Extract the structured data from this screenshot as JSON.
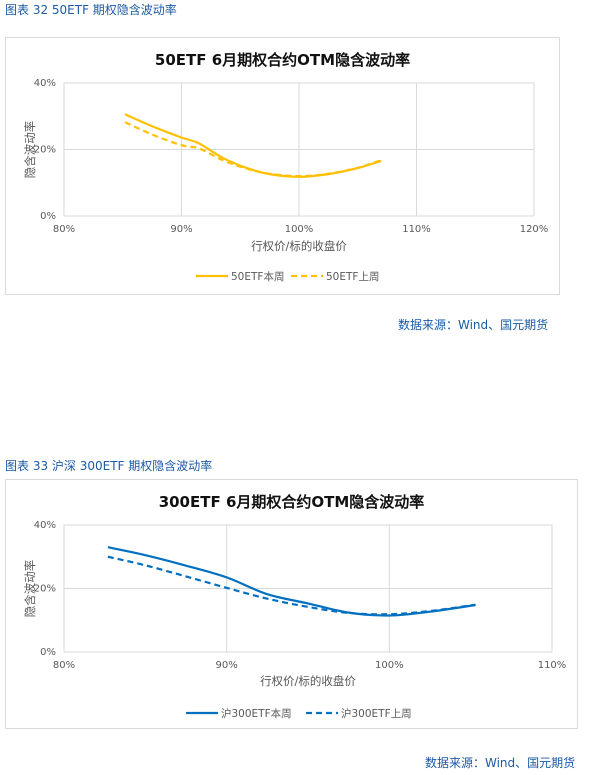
{
  "figures": [
    {
      "caption": "图表 32  50ETF 期权隐含波动率",
      "source": "数据来源：Wind、国元期货"
    },
    {
      "caption": "图表 33  沪深 300ETF 期权隐含波动率",
      "source": "数据来源：Wind、国元期货"
    }
  ],
  "chart_data": [
    {
      "type": "line",
      "title": "50ETF  6月期权合约OTM隐含波动率",
      "xlabel": "行权价/标的收盘价",
      "ylabel": "隐含波动率",
      "xlim": [
        80,
        120
      ],
      "ylim": [
        0,
        40
      ],
      "x_ticks": [
        "80%",
        "90%",
        "100%",
        "110%",
        "120%"
      ],
      "y_ticks": [
        "0%",
        "20%",
        "40%"
      ],
      "grid": true,
      "legend_position": "bottom",
      "color": "#FFC000",
      "series": [
        {
          "name": "50ETF本周",
          "style": "solid",
          "x": [
            85.2,
            87.5,
            90.0,
            91.5,
            93.5,
            95.5,
            97.5,
            100.0,
            102.5,
            105.0,
            107.0
          ],
          "y": [
            30.6,
            27.0,
            23.6,
            21.8,
            17.5,
            14.5,
            12.6,
            11.8,
            12.6,
            14.4,
            16.6
          ]
        },
        {
          "name": "50ETF上周",
          "style": "dashed",
          "x": [
            85.2,
            87.5,
            90.0,
            91.5,
            93.5,
            95.5,
            97.5,
            100.0,
            102.5,
            105.0,
            107.0
          ],
          "y": [
            28.2,
            24.5,
            21.3,
            20.3,
            16.8,
            14.3,
            12.7,
            12.0,
            12.7,
            14.5,
            16.8
          ]
        }
      ]
    },
    {
      "type": "line",
      "title": "300ETF  6月期权合约OTM隐含波动率",
      "xlabel": "行权价/标的收盘价",
      "ylabel": "隐含波动率",
      "xlim": [
        80,
        110
      ],
      "ylim": [
        0,
        40
      ],
      "x_ticks": [
        "80%",
        "90%",
        "100%",
        "110%"
      ],
      "y_ticks": [
        "0%",
        "20%",
        "40%"
      ],
      "grid": true,
      "legend_position": "bottom",
      "color": "#0070C0",
      "series": [
        {
          "name": "沪300ETF本周",
          "style": "solid",
          "x": [
            82.7,
            85.0,
            87.5,
            90.0,
            92.5,
            95.0,
            97.5,
            100.0,
            102.5,
            105.3
          ],
          "y": [
            33.0,
            30.5,
            27.2,
            23.5,
            18.2,
            15.3,
            12.4,
            11.5,
            12.7,
            14.8
          ]
        },
        {
          "name": "沪300ETF上周",
          "style": "dashed",
          "x": [
            82.7,
            85.0,
            87.5,
            90.0,
            92.5,
            95.0,
            97.5,
            100.0,
            102.5,
            105.3
          ],
          "y": [
            30.0,
            27.3,
            23.8,
            20.2,
            16.8,
            14.2,
            12.3,
            11.9,
            12.9,
            14.9
          ]
        }
      ]
    }
  ]
}
